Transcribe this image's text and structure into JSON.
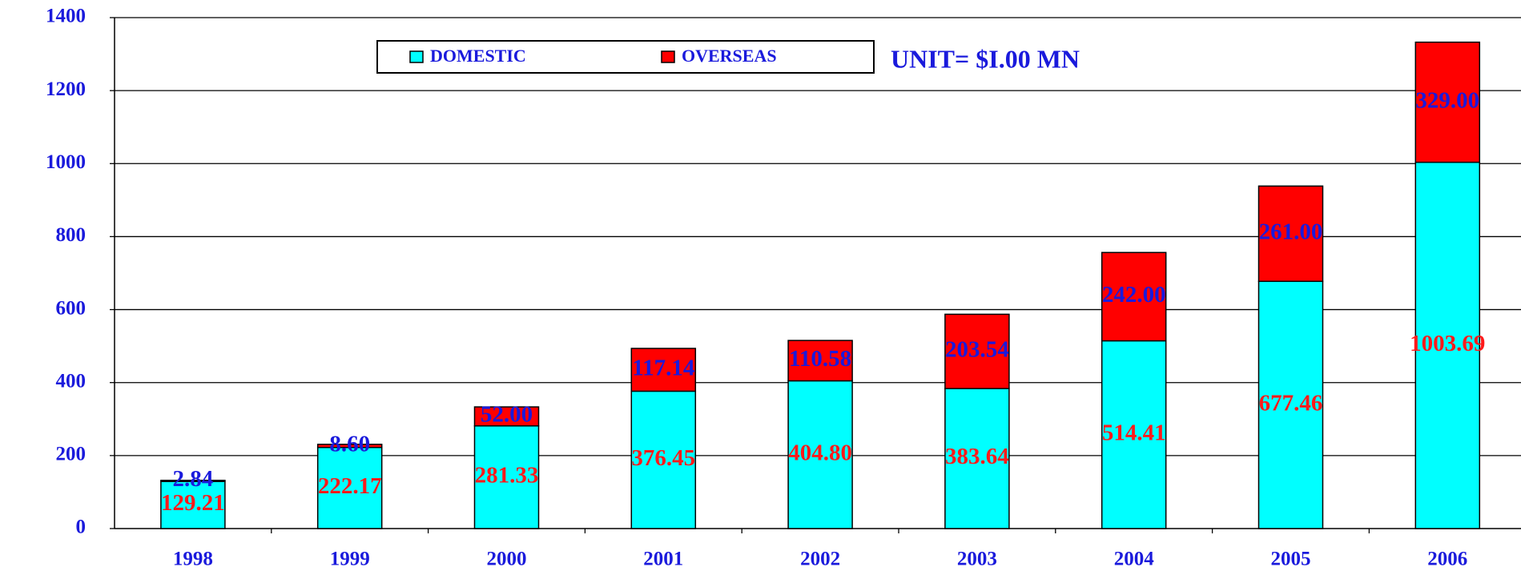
{
  "chart_data": {
    "type": "stacked_bar",
    "annotation": "UNIT= $I.00 MN",
    "categories": [
      "1998",
      "1999",
      "2000",
      "2001",
      "2002",
      "2003",
      "2004",
      "2005",
      "2006"
    ],
    "series": [
      {
        "name": "DOMESTIC",
        "color": "#00ffff",
        "values": [
          129.21,
          222.17,
          281.33,
          376.45,
          404.8,
          383.64,
          514.41,
          677.46,
          1003.69
        ],
        "value_labels": [
          "129.21",
          "222.17",
          "281.33",
          "376.45",
          "404.80",
          "383.64",
          "514.41",
          "677.46",
          "1003.69"
        ]
      },
      {
        "name": "OVERSEAS",
        "color": "#ff0000",
        "values": [
          2.84,
          8.6,
          52,
          117.14,
          110.58,
          203.54,
          242,
          261,
          329
        ],
        "value_labels": [
          "2.84",
          "8.60",
          "52.00",
          "117.14",
          "110.58",
          "203.54",
          "242.00",
          "261.00",
          "329.00"
        ]
      }
    ],
    "ylim": [
      0,
      1400
    ],
    "yticks": [
      0,
      200,
      400,
      600,
      800,
      1000,
      1200,
      1400
    ],
    "grid": true
  }
}
